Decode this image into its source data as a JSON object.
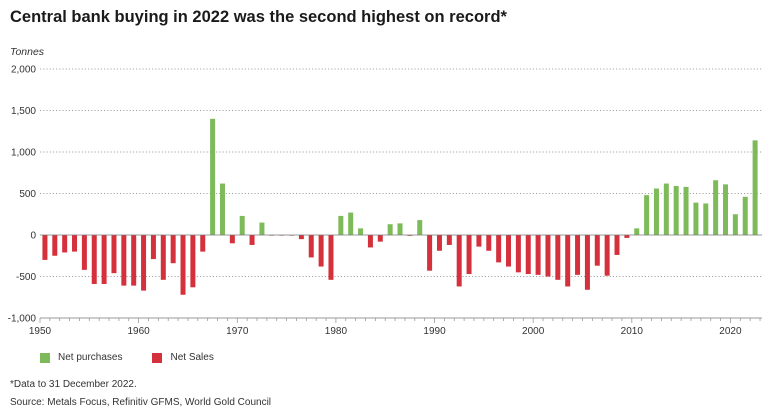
{
  "header": {
    "title": "Central bank buying in 2022 was the second highest on record*"
  },
  "notes": {
    "footnote": "*Data to 31 December 2022.",
    "source": "Source: Metals Focus, Refinitiv GFMS, World Gold Council"
  },
  "colors": {
    "purchase": "#7dbb5a",
    "sale": "#d4313c",
    "grid": "#888888",
    "axis": "#999999"
  },
  "chart_data": {
    "type": "bar",
    "title": "Central bank buying in 2022 was the second highest on record*",
    "xlabel": "",
    "ylabel": "Tonnes",
    "ylim": [
      -1000,
      2000
    ],
    "yticks": [
      -1000,
      -500,
      0,
      500,
      1000,
      1500,
      2000
    ],
    "ytick_labels": [
      "-1,000",
      "-500",
      "0",
      "500",
      "1,000",
      "1,500",
      "2,000"
    ],
    "xticks": [
      1950,
      1960,
      1970,
      1980,
      1990,
      2000,
      2010,
      2020
    ],
    "xtick_labels": [
      "1950",
      "1960",
      "1970",
      "1980",
      "1990",
      "2000",
      "2010",
      "2020"
    ],
    "grid": true,
    "legend": {
      "position": "bottom-left",
      "entries": [
        {
          "name": "Net purchases",
          "color": "#7dbb5a"
        },
        {
          "name": "Net Sales",
          "color": "#d4313c"
        }
      ]
    },
    "years": [
      1950,
      1951,
      1952,
      1953,
      1954,
      1955,
      1956,
      1957,
      1958,
      1959,
      1960,
      1961,
      1962,
      1963,
      1964,
      1965,
      1966,
      1967,
      1968,
      1969,
      1970,
      1971,
      1972,
      1973,
      1974,
      1975,
      1976,
      1977,
      1978,
      1979,
      1980,
      1981,
      1982,
      1983,
      1984,
      1985,
      1986,
      1987,
      1988,
      1989,
      1990,
      1991,
      1992,
      1993,
      1994,
      1995,
      1996,
      1997,
      1998,
      1999,
      2000,
      2001,
      2002,
      2003,
      2004,
      2005,
      2006,
      2007,
      2008,
      2009,
      2010,
      2011,
      2012,
      2013,
      2014,
      2015,
      2016,
      2017,
      2018,
      2019,
      2020,
      2021,
      2022
    ],
    "values": [
      -300,
      -250,
      -210,
      -200,
      -420,
      -590,
      -590,
      -460,
      -610,
      -610,
      -670,
      -290,
      -540,
      -340,
      -720,
      -630,
      -200,
      1400,
      620,
      -100,
      230,
      -120,
      150,
      -5,
      -5,
      -5,
      -50,
      -270,
      -380,
      -540,
      230,
      270,
      80,
      -150,
      -80,
      130,
      140,
      -10,
      180,
      -430,
      -190,
      -120,
      -620,
      -470,
      -140,
      -190,
      -330,
      -380,
      -450,
      -470,
      -480,
      -500,
      -540,
      -620,
      -480,
      -660,
      -370,
      -490,
      -240,
      -35,
      80,
      480,
      560,
      620,
      590,
      580,
      390,
      380,
      660,
      610,
      250,
      460,
      1140
    ]
  }
}
